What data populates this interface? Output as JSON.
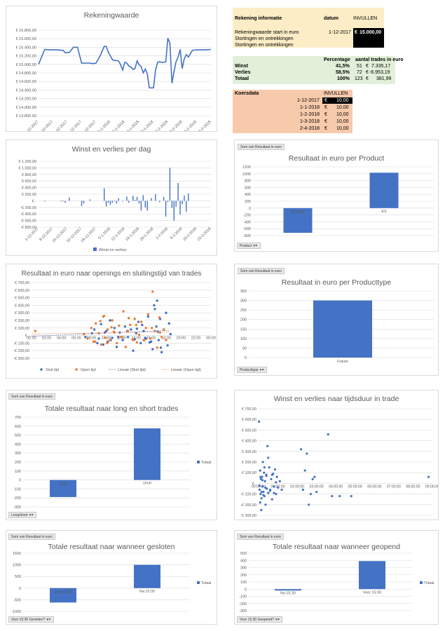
{
  "colors": {
    "blue": "#4472c4",
    "orange": "#ed7d31",
    "grid": "#d9d9d9",
    "axis": "#595959",
    "yellow": "#fcedc6",
    "green": "#e2efd9",
    "salmon": "#f7caac",
    "black": "#000000"
  },
  "info": {
    "title": "Rekening informatie",
    "datum_label": "datum",
    "invullen_label": "INVULLEN",
    "rows": [
      "Rekeningwaarde start in euro",
      "Stortingen en ontrekkingen",
      "Stortingen en ontrekkingen"
    ],
    "start_date": "1-12-2017",
    "start_currency": "€",
    "start_value": "15.000,00"
  },
  "stats": {
    "headers": [
      "Percentage",
      "aantal trades in euro"
    ],
    "rows": [
      {
        "label": "Winst",
        "pct": "41,5%",
        "count": "51",
        "cur": "€",
        "val": "7.335,17"
      },
      {
        "label": "Verlies",
        "pct": "58,5%",
        "count": "72",
        "cur": "€",
        "val": "-6.953,19"
      },
      {
        "label": "Totaal",
        "pct": "100%",
        "count": "123",
        "cur": "€",
        "val": "381,99"
      }
    ]
  },
  "koers": {
    "title": "Koersdata",
    "invullen_label": "INVULLEN",
    "rows": [
      {
        "date": "1-12-2017",
        "cur": "€",
        "val": "10,00"
      },
      {
        "date": "1-1-2018",
        "cur": "€",
        "val": "10,00"
      },
      {
        "date": "1-2-2018",
        "cur": "€",
        "val": "10,00"
      },
      {
        "date": "1-3-2018",
        "cur": "€",
        "val": "10,00"
      },
      {
        "date": "2-4-2018",
        "cur": "€",
        "val": "10,00"
      }
    ]
  },
  "pivot_buttons": {
    "product": "Som van Resultaat in euro",
    "product_filter": "Product",
    "producttype": "Som van Resultaat in euro",
    "producttype_filter": "Producttype",
    "longshort": "Som van Resultaat in euro",
    "longshort_filter": "Long/short",
    "gesloten": "Som van Resultaat in euro",
    "gesloten_filter": "Voor 15:30 Gesloten?",
    "geopend": "Som van Resultaat in euro",
    "geopend_filter": "Voor 15:30 Geopend?"
  },
  "chart_data": [
    {
      "id": "rekeningwaarde",
      "type": "line",
      "title": "Rekeningwaarde",
      "ylim": [
        13800,
        15800
      ],
      "yticks": [
        "€ 13.800,00",
        "€ 14.000,00",
        "€ 14.200,00",
        "€ 14.400,00",
        "€ 14.600,00",
        "€ 14.800,00",
        "€ 15.000,00",
        "€ 15.200,00",
        "€ 15.400,00",
        "€ 15.600,00",
        "€ 15.800,00"
      ],
      "xticks": [
        "1-12-2017",
        "8-12-2017",
        "15-12-2017",
        "22-12-2017",
        "29-12-2017",
        "5-1-2018",
        "12-1-2018",
        "19-1-2018",
        "26-1-2018",
        "2-2-2018",
        "9-2-2018",
        "16-2-2018",
        "23-2-2018"
      ],
      "x_days": [
        0,
        3,
        5,
        7,
        9,
        11,
        12,
        13,
        15,
        17,
        19,
        21,
        23,
        25,
        26,
        27,
        28,
        30,
        32,
        33,
        34,
        35,
        36,
        37,
        38,
        39,
        40,
        41,
        42,
        43,
        44,
        45,
        46,
        47,
        48,
        49,
        50,
        51,
        52,
        53,
        54,
        55,
        56,
        57,
        58,
        59,
        60,
        61,
        62,
        63,
        64,
        65,
        66,
        67,
        68,
        69,
        70,
        71,
        72,
        73,
        75,
        77,
        79,
        81,
        84
      ],
      "values": [
        15000,
        15350,
        15340,
        15340,
        15340,
        15330,
        15330,
        15270,
        15280,
        15400,
        15400,
        15030,
        15030,
        15030,
        15020,
        15020,
        15030,
        15200,
        15420,
        15420,
        15280,
        15200,
        15110,
        15090,
        15090,
        15080,
        14990,
        14870,
        15050,
        15030,
        14960,
        14940,
        14880,
        14900,
        15080,
        14990,
        14950,
        14800,
        14890,
        14780,
        14450,
        14450,
        14450,
        14860,
        15050,
        15060,
        15050,
        15050,
        15060,
        15610,
        15500,
        14560,
        14830,
        15060,
        15170,
        15350,
        14900,
        15130,
        15230,
        15170,
        15330,
        15340,
        15340,
        15340,
        15350
      ]
    },
    {
      "id": "winst_verlies_dag",
      "type": "bar",
      "title": "Winst en verlies per dag",
      "ylim": [
        -800,
        1200
      ],
      "yticks": [
        "-€ 800,00",
        "-€ 600,00",
        "-€ 400,00",
        "-€ 200,00",
        "€ -",
        "€ 200,00",
        "€ 400,00",
        "€ 600,00",
        "€ 800,00",
        "€ 1.000,00",
        "€ 1.200,00"
      ],
      "xticks": [
        "1-12-2017",
        "8-12-2017",
        "15-12-2017",
        "22-12-2017",
        "29-12-2017",
        "5-1-2018",
        "12-1-2018",
        "19-1-2018",
        "26-1-2018",
        "2-2-2018",
        "9-2-2018",
        "16-2-2018",
        "23-2-2018"
      ],
      "legend": "Winst en verlies",
      "x_days": [
        3,
        11,
        12,
        13,
        15,
        21,
        22,
        25,
        32,
        33,
        34,
        35,
        36,
        37,
        38,
        39,
        41,
        43,
        44,
        46,
        47,
        48,
        49,
        50,
        51,
        52,
        53,
        55,
        57,
        59,
        61,
        62,
        63,
        64,
        65,
        66,
        67,
        68,
        69,
        70,
        71,
        72,
        73
      ],
      "values": [
        -20,
        -20,
        -20,
        -60,
        100,
        -160,
        -80,
        40,
        380,
        -170,
        -60,
        -120,
        -60,
        -10,
        -80,
        80,
        -20,
        130,
        -60,
        150,
        30,
        120,
        -80,
        -300,
        170,
        -200,
        -300,
        80,
        200,
        -40,
        120,
        -480,
        -40,
        1000,
        -220,
        -600,
        -180,
        540,
        -420,
        -100,
        160,
        -330,
        220
      ]
    },
    {
      "id": "product",
      "type": "bar",
      "title": "Resultaat in euro per Product",
      "categories": [
        "ECDCE",
        "ES"
      ],
      "values": [
        -720,
        1030
      ],
      "ylim": [
        -800,
        1200
      ],
      "yticks": [
        "-800",
        "-600",
        "-400",
        "-200",
        "0",
        "200",
        "400",
        "600",
        "800",
        "1000",
        "1200"
      ]
    },
    {
      "id": "openings_sluitingstijd",
      "type": "scatter",
      "title": "Resultaat in euro naar openings en sluitingstijd van trades",
      "ylim": [
        -300,
        700
      ],
      "yticks": [
        "-€ 300,00",
        "-€ 200,00",
        "-€ 100,00",
        "€ -",
        "€ 100,00",
        "€ 200,00",
        "€ 300,00",
        "€ 400,00",
        "€ 500,00",
        "€ 600,00",
        "€ 700,00"
      ],
      "xticks": [
        "00:00",
        "02:00",
        "04:00",
        "06:00",
        "08:00",
        "10:00",
        "12:00",
        "14:00",
        "16:00",
        "18:00",
        "20:00",
        "22:00",
        "00:00"
      ],
      "legend": [
        "Sluit tijd",
        "Open tijd",
        "Lineair (Sluit tijd)",
        "Lineair (Open tijd)"
      ],
      "series": [
        {
          "name": "Sluit tijd",
          "x": [
            7.2,
            8.1,
            8.4,
            9.0,
            9.3,
            9.6,
            10.0,
            10.2,
            10.5,
            10.8,
            11.1,
            11.4,
            11.8,
            12.2,
            12.5,
            12.9,
            13.3,
            13.6,
            14.0,
            14.3,
            14.6,
            15.0,
            15.3,
            15.6,
            16.0,
            16.2,
            16.4,
            16.7,
            17.0,
            17.2,
            17.4,
            17.7,
            18.0,
            18.2,
            18.4,
            18.6,
            16.8,
            15.8,
            14.8,
            13.8,
            12.8,
            11.6,
            10.6,
            9.8,
            8.8,
            16.9,
            17.3,
            16.5,
            15.2,
            14.1
          ],
          "y": [
            -20,
            30,
            80,
            -40,
            150,
            -120,
            60,
            -80,
            200,
            -30,
            100,
            -150,
            40,
            -60,
            120,
            -20,
            80,
            -200,
            30,
            180,
            -100,
            60,
            -40,
            250,
            -80,
            -180,
            400,
            120,
            -60,
            220,
            -220,
            80,
            300,
            -130,
            160,
            20,
            460,
            -90,
            140,
            -50,
            60,
            -20,
            -60,
            40,
            -100,
            50,
            -160,
            350,
            -30,
            90
          ]
        },
        {
          "name": "Open tijd",
          "x": [
            0.5,
            7.0,
            7.5,
            8.0,
            8.3,
            8.6,
            9.0,
            9.3,
            9.6,
            9.9,
            10.2,
            10.5,
            10.8,
            11.1,
            11.4,
            11.7,
            12.0,
            12.3,
            12.6,
            12.9,
            13.2,
            13.5,
            13.8,
            14.1,
            14.4,
            14.7,
            15.0,
            15.3,
            15.6,
            15.9,
            16.2,
            16.5,
            16.8,
            17.1,
            17.4,
            17.7,
            18.0,
            9.2,
            10.1,
            11.0,
            12.1,
            13.0,
            14.0,
            15.1,
            16.1,
            17.2,
            8.5,
            9.7,
            10.7,
            13.6
          ],
          "y": [
            60,
            20,
            -40,
            100,
            -80,
            160,
            30,
            -120,
            250,
            -30,
            80,
            -60,
            200,
            40,
            -100,
            130,
            -20,
            320,
            -150,
            60,
            140,
            -50,
            220,
            -90,
            10,
            180,
            -60,
            100,
            280,
            -40,
            580,
            60,
            -160,
            240,
            -20,
            80,
            -60,
            190,
            -100,
            50,
            -20,
            230,
            140,
            -60,
            100,
            40,
            -80,
            260,
            110,
            -60
          ]
        }
      ],
      "trend_sluit": {
        "x": [
          0,
          18.5
        ],
        "y": [
          -10,
          70
        ]
      },
      "trend_open": {
        "x": [
          0,
          18.5
        ],
        "y": [
          20,
          50
        ]
      }
    },
    {
      "id": "producttype",
      "type": "bar",
      "title": "Resultaat in euro per Producttype",
      "categories": [
        "Future"
      ],
      "values": [
        300
      ],
      "ylim": [
        0,
        350
      ],
      "yticks": [
        "0",
        "50",
        "100",
        "150",
        "200",
        "250",
        "300",
        "350"
      ]
    },
    {
      "id": "longshort",
      "type": "bar",
      "title": "Totale resultaat naar long en short trades",
      "categories": [
        "long",
        "short"
      ],
      "values": [
        -190,
        575
      ],
      "ylim": [
        -300,
        700
      ],
      "yticks": [
        "-300",
        "-200",
        "-100",
        "0",
        "100",
        "200",
        "300",
        "400",
        "500",
        "600",
        "700"
      ],
      "legend": "Totaal"
    },
    {
      "id": "tijdsduur",
      "type": "scatter",
      "title": "Winst en verlies naar tijdsduur in trade",
      "ylim": [
        -300,
        700
      ],
      "yticks": [
        "-€ 300,00",
        "-€ 200,00",
        "-€ 100,00",
        "€ -",
        "€ 100,00",
        "€ 200,00",
        "€ 300,00",
        "€ 400,00",
        "€ 500,00",
        "€ 600,00",
        "€ 700,00"
      ],
      "xticks": [
        "00:00:00",
        "01:00:00",
        "02:00:00",
        "03:00:00",
        "04:00:00",
        "05:00:00",
        "06:00:00",
        "07:00:00",
        "08:00:00",
        "09:00:00"
      ],
      "x": [
        0.02,
        0.05,
        0.08,
        0.1,
        0.12,
        0.15,
        0.18,
        0.2,
        0.22,
        0.25,
        0.28,
        0.3,
        0.33,
        0.36,
        0.4,
        0.43,
        0.46,
        0.5,
        0.55,
        0.6,
        0.65,
        0.7,
        0.75,
        0.8,
        0.85,
        0.9,
        0.95,
        1.0,
        1.1,
        1.2,
        0.05,
        0.1,
        0.15,
        0.2,
        0.25,
        0.3,
        0.35,
        0.4,
        0.5,
        0.6,
        0.7,
        0.8,
        0.9,
        2.2,
        2.3,
        2.4,
        2.5,
        2.6,
        2.7,
        2.8,
        2.9,
        3.0,
        3.6,
        3.8,
        4.2,
        4.8,
        8.8,
        0.08,
        0.14,
        0.5
      ],
      "y": [
        580,
        -60,
        120,
        -100,
        40,
        -140,
        60,
        -30,
        200,
        -80,
        100,
        -120,
        20,
        -200,
        80,
        -50,
        350,
        -90,
        150,
        -60,
        40,
        -150,
        90,
        -30,
        130,
        -100,
        60,
        -40,
        20,
        -60,
        -20,
        60,
        -80,
        30,
        -110,
        150,
        -40,
        70,
        240,
        -70,
        80,
        -90,
        10,
        320,
        -60,
        120,
        280,
        -200,
        -100,
        40,
        60,
        -80,
        460,
        -120,
        -120,
        -120,
        60,
        -180,
        -250,
        -90
      ]
    },
    {
      "id": "gesloten",
      "type": "bar",
      "title": "Totale resultaat naar wanneer gesloten",
      "categories": [
        "Voor 15:30",
        "Na 15:30"
      ],
      "values": [
        -620,
        1000
      ],
      "ylim": [
        -1000,
        1500
      ],
      "yticks": [
        "-1000",
        "-500",
        "0",
        "500",
        "1000",
        "1500"
      ],
      "legend": "Totaal"
    },
    {
      "id": "geopend",
      "type": "bar",
      "title": "Totale resultaat naar wanneer geopend",
      "categories": [
        "Na 15:30",
        "Voor 15:30"
      ],
      "values": [
        -20,
        390
      ],
      "ylim": [
        -300,
        500
      ],
      "yticks": [
        "-300",
        "-200",
        "-100",
        "0",
        "100",
        "200",
        "300",
        "400",
        "500"
      ],
      "legend": "Totaal"
    }
  ]
}
